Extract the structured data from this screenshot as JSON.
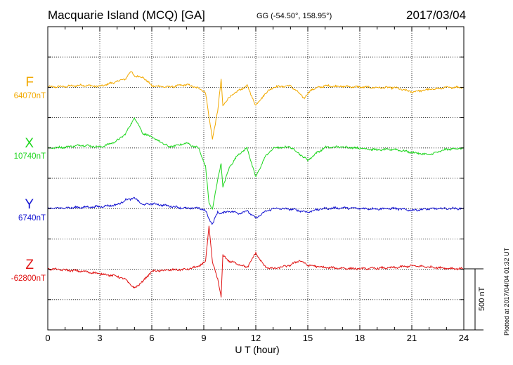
{
  "header": {
    "station": "Macquarie Island (MCQ)  [GA]",
    "coords": "GG (-54.50°, 158.95°)",
    "date": "2017/03/04"
  },
  "footer_note": "Plotted at 2017/04/04 01:32 UT",
  "chart_data": {
    "type": "line",
    "xlabel": "U T (hour)",
    "xlim": [
      0,
      24
    ],
    "xticks": [
      "0",
      "3",
      "6",
      "9",
      "12",
      "15",
      "18",
      "21",
      "24"
    ],
    "scale_bar": "500 nT",
    "scale_bar_nT": 500,
    "grid": true,
    "series": [
      {
        "name": "F",
        "baseline": "64070nT",
        "color": "#f2a900",
        "points": [
          [
            0,
            0
          ],
          [
            1,
            5
          ],
          [
            2,
            15
          ],
          [
            3,
            5
          ],
          [
            3.5,
            25
          ],
          [
            4,
            45
          ],
          [
            4.5,
            70
          ],
          [
            4.8,
            130
          ],
          [
            5,
            90
          ],
          [
            5.5,
            80
          ],
          [
            6,
            10
          ],
          [
            7,
            0
          ],
          [
            8,
            20
          ],
          [
            8.7,
            -10
          ],
          [
            9.1,
            -40
          ],
          [
            9.3,
            -250
          ],
          [
            9.5,
            -420
          ],
          [
            9.8,
            -200
          ],
          [
            10,
            60
          ],
          [
            10.1,
            -150
          ],
          [
            10.5,
            -80
          ],
          [
            11,
            -30
          ],
          [
            11.5,
            10
          ],
          [
            12,
            -150
          ],
          [
            12.5,
            -60
          ],
          [
            13,
            0
          ],
          [
            14,
            10
          ],
          [
            14.8,
            -90
          ],
          [
            15.2,
            -20
          ],
          [
            16,
            10
          ],
          [
            17,
            5
          ],
          [
            18,
            0
          ],
          [
            19,
            -5
          ],
          [
            20,
            -5
          ],
          [
            21,
            -40
          ],
          [
            22,
            -20
          ],
          [
            23,
            -5
          ],
          [
            24,
            0
          ]
        ]
      },
      {
        "name": "X",
        "baseline": "10740nT",
        "color": "#1fd61f",
        "points": [
          [
            0,
            0
          ],
          [
            1,
            8
          ],
          [
            2,
            25
          ],
          [
            3,
            8
          ],
          [
            3.5,
            30
          ],
          [
            4,
            60
          ],
          [
            4.5,
            120
          ],
          [
            5,
            250
          ],
          [
            5.5,
            120
          ],
          [
            6,
            90
          ],
          [
            7,
            10
          ],
          [
            8,
            40
          ],
          [
            8.7,
            0
          ],
          [
            9.1,
            -150
          ],
          [
            9.3,
            -450
          ],
          [
            9.5,
            -500
          ],
          [
            9.8,
            -260
          ],
          [
            10,
            -120
          ],
          [
            10.1,
            -320
          ],
          [
            10.5,
            -150
          ],
          [
            11,
            -50
          ],
          [
            11.5,
            0
          ],
          [
            12,
            -240
          ],
          [
            12.5,
            -80
          ],
          [
            13,
            0
          ],
          [
            14,
            10
          ],
          [
            15,
            -100
          ],
          [
            15.5,
            -40
          ],
          [
            16,
            5
          ],
          [
            17,
            10
          ],
          [
            18,
            0
          ],
          [
            19,
            -15
          ],
          [
            20,
            -10
          ],
          [
            21,
            -35
          ],
          [
            22,
            -55
          ],
          [
            23,
            -10
          ],
          [
            24,
            0
          ]
        ]
      },
      {
        "name": "Y",
        "baseline": "6740nT",
        "color": "#1414d2",
        "points": [
          [
            0,
            0
          ],
          [
            1,
            5
          ],
          [
            2,
            10
          ],
          [
            3,
            15
          ],
          [
            4,
            30
          ],
          [
            4.5,
            70
          ],
          [
            5,
            85
          ],
          [
            5.5,
            30
          ],
          [
            6,
            40
          ],
          [
            7,
            20
          ],
          [
            8,
            0
          ],
          [
            8.7,
            5
          ],
          [
            9.1,
            -20
          ],
          [
            9.3,
            -80
          ],
          [
            9.5,
            -130
          ],
          [
            9.8,
            -30
          ],
          [
            10,
            -40
          ],
          [
            10.5,
            -20
          ],
          [
            11,
            -40
          ],
          [
            11.5,
            -20
          ],
          [
            12,
            -80
          ],
          [
            12.5,
            -30
          ],
          [
            13,
            0
          ],
          [
            14,
            -5
          ],
          [
            15,
            -30
          ],
          [
            15.5,
            -10
          ],
          [
            16,
            0
          ],
          [
            17,
            5
          ],
          [
            18,
            0
          ],
          [
            19,
            -3
          ],
          [
            20,
            0
          ],
          [
            21,
            -15
          ],
          [
            22,
            -3
          ],
          [
            23,
            0
          ],
          [
            24,
            0
          ]
        ]
      },
      {
        "name": "Z",
        "baseline": "-62800nT",
        "color": "#e01414",
        "points": [
          [
            0,
            0
          ],
          [
            1,
            -10
          ],
          [
            2,
            -20
          ],
          [
            3,
            -40
          ],
          [
            4,
            -60
          ],
          [
            4.5,
            -90
          ],
          [
            5,
            -160
          ],
          [
            5.5,
            -100
          ],
          [
            6,
            -20
          ],
          [
            7,
            -10
          ],
          [
            8,
            -5
          ],
          [
            8.7,
            20
          ],
          [
            9.1,
            60
          ],
          [
            9.3,
            350
          ],
          [
            9.5,
            50
          ],
          [
            9.8,
            -80
          ],
          [
            10,
            -230
          ],
          [
            10.1,
            110
          ],
          [
            10.5,
            60
          ],
          [
            11,
            40
          ],
          [
            11.5,
            10
          ],
          [
            12,
            130
          ],
          [
            12.5,
            20
          ],
          [
            13,
            0
          ],
          [
            14,
            30
          ],
          [
            14.5,
            70
          ],
          [
            15,
            30
          ],
          [
            16,
            10
          ],
          [
            17,
            5
          ],
          [
            18,
            0
          ],
          [
            19,
            5
          ],
          [
            20,
            10
          ],
          [
            21,
            25
          ],
          [
            22,
            15
          ],
          [
            23,
            5
          ],
          [
            24,
            0
          ]
        ]
      }
    ]
  }
}
